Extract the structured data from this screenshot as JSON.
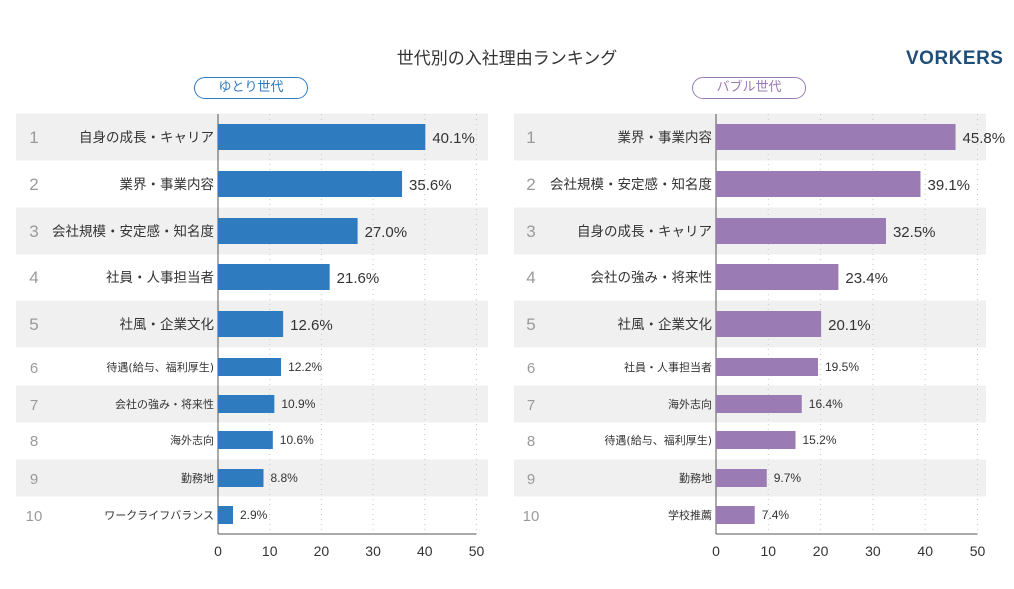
{
  "title": "世代別の入社理由ランキング",
  "brand": "VORKERS",
  "chart_data": [
    {
      "type": "bar",
      "group_label": "ゆとり世代",
      "color": "#2e7bc0",
      "ranks": [
        "1",
        "2",
        "3",
        "4",
        "5",
        "6",
        "7",
        "8",
        "9",
        "10"
      ],
      "categories": [
        "自身の成長・キャリア",
        "業界・事業内容",
        "会社規模・安定感・知名度",
        "社員・人事担当者",
        "社風・企業文化",
        "待遇(給与、福利厚生)",
        "会社の強み・将来性",
        "海外志向",
        "勤務地",
        "ワークライフバランス"
      ],
      "values": [
        40.1,
        35.6,
        27.0,
        21.6,
        12.6,
        12.2,
        10.9,
        10.6,
        8.8,
        2.9
      ],
      "value_labels": [
        "40.1%",
        "35.6%",
        "27.0%",
        "21.6%",
        "12.6%",
        "12.2%",
        "10.9%",
        "10.6%",
        "8.8%",
        "2.9%"
      ],
      "xlim": [
        0,
        50
      ],
      "xticks": [
        "0",
        "10",
        "20",
        "30",
        "40",
        "50"
      ]
    },
    {
      "type": "bar",
      "group_label": "バブル世代",
      "color": "#9a7bb4",
      "ranks": [
        "1",
        "2",
        "3",
        "4",
        "5",
        "6",
        "7",
        "8",
        "9",
        "10"
      ],
      "categories": [
        "業界・事業内容",
        "会社規模・安定感・知名度",
        "自身の成長・キャリア",
        "会社の強み・将来性",
        "社風・企業文化",
        "社員・人事担当者",
        "海外志向",
        "待遇(給与、福利厚生)",
        "勤務地",
        "学校推薦"
      ],
      "values": [
        45.8,
        39.1,
        32.5,
        23.4,
        20.1,
        19.5,
        16.4,
        15.2,
        9.7,
        7.4
      ],
      "value_labels": [
        "45.8%",
        "39.1%",
        "32.5%",
        "23.4%",
        "20.1%",
        "19.5%",
        "16.4%",
        "15.2%",
        "9.7%",
        "7.4%"
      ],
      "xlim": [
        0,
        50
      ],
      "xticks": [
        "0",
        "10",
        "20",
        "30",
        "40",
        "50"
      ]
    }
  ]
}
